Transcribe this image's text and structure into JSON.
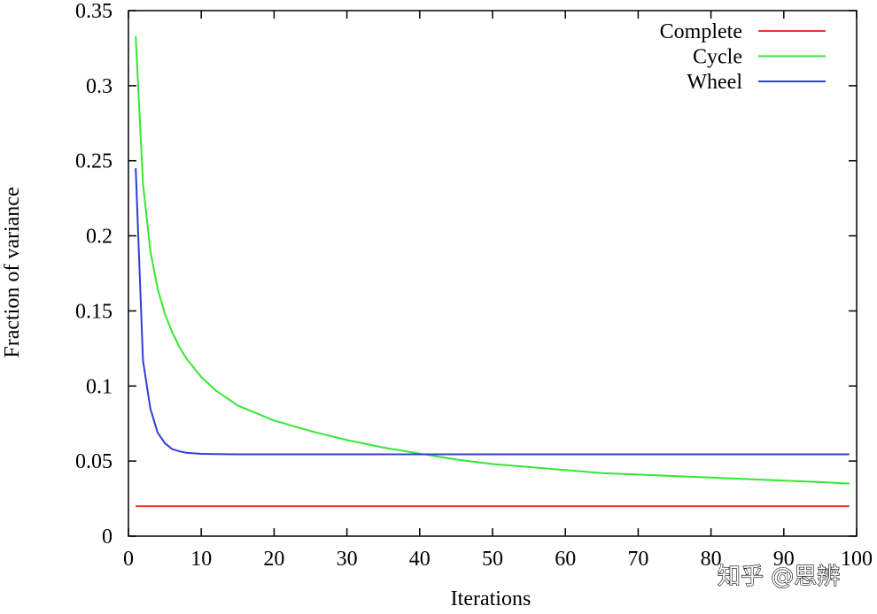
{
  "chart_data": {
    "type": "line",
    "xlabel": "Iterations",
    "ylabel": "Fraction of variance",
    "xlim": [
      0,
      100
    ],
    "ylim": [
      0,
      0.35
    ],
    "x_ticks": [
      "0",
      "10",
      "20",
      "30",
      "40",
      "50",
      "60",
      "70",
      "80",
      "90",
      "100"
    ],
    "y_ticks": [
      "0",
      "0.05",
      "0.1",
      "0.15",
      "0.2",
      "0.25",
      "0.3",
      "0.35"
    ],
    "legend_position": "top-right",
    "grid": false,
    "series": [
      {
        "name": "Complete",
        "color": "#e8382e",
        "x": [
          1,
          99
        ],
        "y": [
          0.02,
          0.02
        ]
      },
      {
        "name": "Cycle",
        "color": "#33e833",
        "x": [
          1,
          2,
          3,
          4,
          5,
          6,
          7,
          8,
          10,
          12,
          15,
          20,
          25,
          30,
          35,
          40,
          45,
          50,
          55,
          60,
          65,
          70,
          75,
          80,
          85,
          90,
          95,
          99
        ],
        "y": [
          0.333,
          0.235,
          0.19,
          0.165,
          0.148,
          0.136,
          0.126,
          0.118,
          0.106,
          0.097,
          0.087,
          0.077,
          0.07,
          0.064,
          0.059,
          0.055,
          0.051,
          0.048,
          0.046,
          0.044,
          0.042,
          0.041,
          0.04,
          0.039,
          0.038,
          0.037,
          0.036,
          0.035
        ]
      },
      {
        "name": "Wheel",
        "color": "#2f3fd0",
        "x": [
          1,
          2,
          3,
          4,
          5,
          6,
          7,
          8,
          10,
          12,
          15,
          20,
          30,
          40,
          50,
          60,
          70,
          80,
          90,
          99
        ],
        "y": [
          0.245,
          0.117,
          0.085,
          0.069,
          0.062,
          0.058,
          0.0565,
          0.0555,
          0.0548,
          0.0546,
          0.0545,
          0.0545,
          0.0545,
          0.0545,
          0.0545,
          0.0545,
          0.0545,
          0.0545,
          0.0545,
          0.0545
        ]
      }
    ]
  },
  "watermark": {
    "text": "知乎 @思辨",
    "color": "#ffffff"
  }
}
